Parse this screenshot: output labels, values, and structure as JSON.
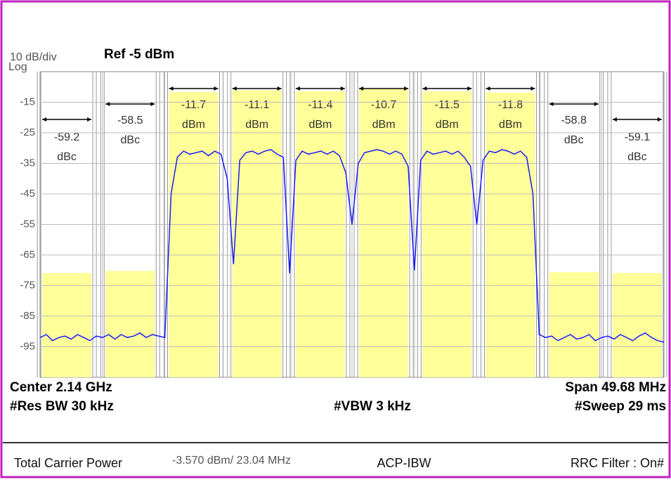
{
  "header": {
    "scale": "10 dB/div",
    "ref": "Ref -5 dBm",
    "log": "Log"
  },
  "chart_data": {
    "type": "line",
    "ylim": [
      -105,
      -5
    ],
    "yticks": [
      -15,
      -25,
      -35,
      -45,
      -55,
      -65,
      -75,
      -85,
      -95
    ],
    "grid": true,
    "channel_color": "#ffff99",
    "channels": [
      {
        "value": -59.2,
        "unit": "dBc"
      },
      {
        "value": -58.5,
        "unit": "dBc"
      },
      {
        "value": -11.7,
        "unit": "dBm"
      },
      {
        "value": -11.1,
        "unit": "dBm"
      },
      {
        "value": -11.4,
        "unit": "dBm"
      },
      {
        "value": -10.7,
        "unit": "dBm"
      },
      {
        "value": -11.5,
        "unit": "dBm"
      },
      {
        "value": -11.8,
        "unit": "dBm"
      },
      {
        "value": -58.8,
        "unit": "dBc"
      },
      {
        "value": -59.1,
        "unit": "dBc"
      }
    ],
    "series": [
      {
        "color": "#1a1aff",
        "values": [
          -92,
          -91,
          -93,
          -92,
          -91.5,
          -92.5,
          -91,
          -92,
          -93,
          -91.5,
          -92,
          -91,
          -92.5,
          -91,
          -92,
          -91.5,
          -90.5,
          -92,
          -91,
          -91.5,
          -92,
          -45,
          -33,
          -31,
          -32,
          -31.5,
          -31,
          -32.5,
          -31,
          -32,
          -40,
          -68,
          -34,
          -31.5,
          -31,
          -32,
          -31,
          -30.5,
          -32,
          -33,
          -71,
          -34,
          -31,
          -32,
          -31.5,
          -31,
          -32,
          -31,
          -32.5,
          -38,
          -55,
          -35,
          -31.5,
          -31,
          -30.5,
          -31,
          -32,
          -31,
          -32,
          -36,
          -70,
          -34,
          -31,
          -32,
          -31.5,
          -31,
          -32,
          -31,
          -33,
          -36,
          -55,
          -34,
          -31,
          -31.5,
          -30.5,
          -31,
          -32,
          -31,
          -33,
          -45,
          -91,
          -92,
          -91.5,
          -93,
          -92,
          -91,
          -92.5,
          -92,
          -91,
          -93,
          -92,
          -91.5,
          -92.5,
          -91,
          -92,
          -93,
          -91.5,
          -90.5,
          -92,
          -93,
          -93.5
        ]
      }
    ]
  },
  "footer": {
    "center": "Center 2.14 GHz",
    "span": "Span 49.68 MHz",
    "rbw": "#Res BW 30 kHz",
    "vbw": "#VBW 3 kHz",
    "sweep": "#Sweep 29 ms"
  },
  "status": {
    "label": "Total Carrier Power",
    "value": "-3.570 dBm/ 23.04 MHz",
    "mode": "ACP-IBW",
    "filter": "RRC Filter : On#"
  }
}
